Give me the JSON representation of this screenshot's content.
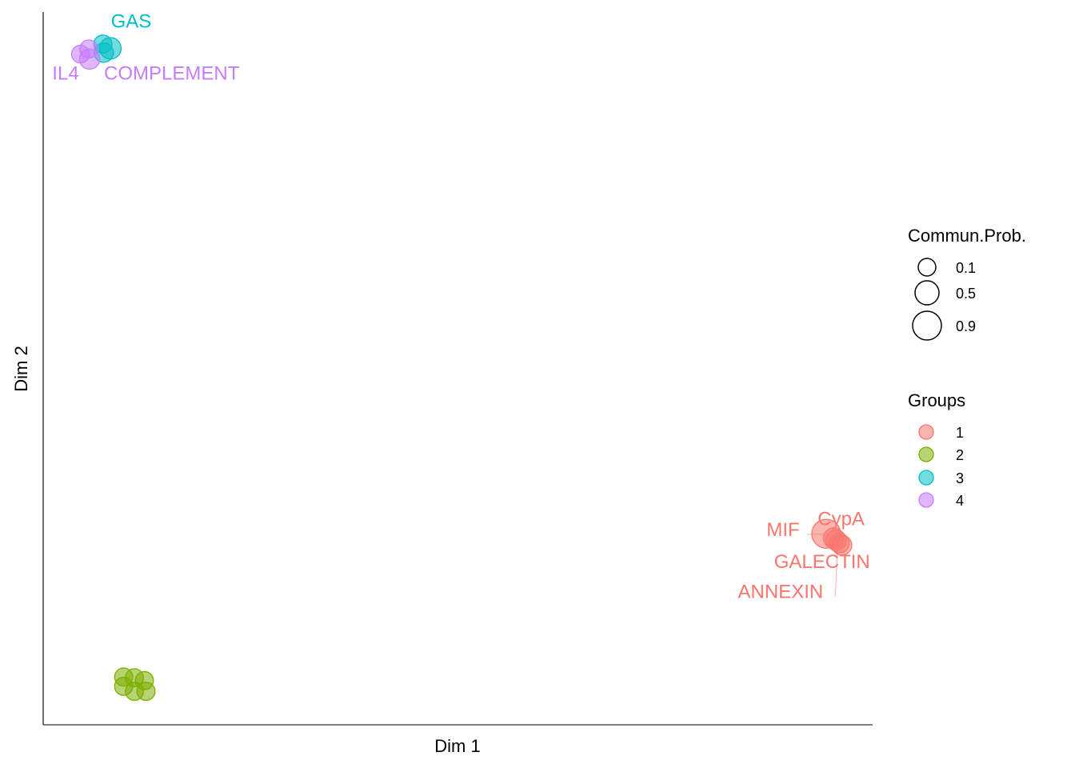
{
  "chart_data": {
    "type": "scatter",
    "xlabel": "Dim 1",
    "ylabel": "Dim 2",
    "xlim": [
      0,
      100
    ],
    "ylim": [
      0,
      100
    ],
    "axis_ticks": false,
    "grid": false,
    "legend_position": "right",
    "legend_size": {
      "title": "Commun.Prob.",
      "entries": [
        {
          "label": "0.1",
          "value": 0.1
        },
        {
          "label": "0.5",
          "value": 0.5
        },
        {
          "label": "0.9",
          "value": 0.9
        }
      ]
    },
    "legend_groups": {
      "title": "Groups",
      "entries": [
        {
          "label": "1",
          "color": "#F8766D"
        },
        {
          "label": "2",
          "color": "#7CAE00"
        },
        {
          "label": "3",
          "color": "#00BFC4"
        },
        {
          "label": "4",
          "color": "#C77CFF"
        }
      ]
    },
    "points": [
      {
        "x": 7.2,
        "y": 95.5,
        "group": 3,
        "prob": 0.2
      },
      {
        "x": 8.1,
        "y": 94.9,
        "group": 3,
        "prob": 0.45
      },
      {
        "x": 7.3,
        "y": 94.3,
        "group": 3,
        "prob": 0.28
      },
      {
        "x": 5.5,
        "y": 94.8,
        "group": 4,
        "prob": 0.2
      },
      {
        "x": 4.5,
        "y": 94.1,
        "group": 4,
        "prob": 0.18
      },
      {
        "x": 5.6,
        "y": 93.4,
        "group": 4,
        "prob": 0.35
      },
      {
        "x": 9.7,
        "y": 6.7,
        "group": 2,
        "prob": 0.2
      },
      {
        "x": 11.0,
        "y": 6.6,
        "group": 2,
        "prob": 0.2
      },
      {
        "x": 12.2,
        "y": 6.2,
        "group": 2,
        "prob": 0.2
      },
      {
        "x": 9.7,
        "y": 5.4,
        "group": 2,
        "prob": 0.2
      },
      {
        "x": 11.0,
        "y": 4.7,
        "group": 2,
        "prob": 0.2
      },
      {
        "x": 12.4,
        "y": 4.7,
        "group": 2,
        "prob": 0.2
      },
      {
        "x": 94.4,
        "y": 26.8,
        "group": 1,
        "prob": 1.3
      },
      {
        "x": 95.3,
        "y": 26.2,
        "group": 1,
        "prob": 0.35
      },
      {
        "x": 95.6,
        "y": 25.9,
        "group": 1,
        "prob": 0.35
      },
      {
        "x": 96.0,
        "y": 25.5,
        "group": 1,
        "prob": 0.3
      },
      {
        "x": 96.3,
        "y": 25.2,
        "group": 1,
        "prob": 0.3
      }
    ],
    "labels": [
      {
        "text": "GAS",
        "group": 3,
        "x": 10.6,
        "y": 97.8,
        "anchor": "middle"
      },
      {
        "text": "IL4",
        "group": 4,
        "x": 2.7,
        "y": 90.5,
        "anchor": "middle"
      },
      {
        "text": "COMPLEMENT",
        "group": 4,
        "x": 15.5,
        "y": 90.5,
        "anchor": "middle"
      },
      {
        "text": "CypA",
        "group": 1,
        "x": 96.2,
        "y": 28.0,
        "anchor": "middle"
      },
      {
        "text": "MIF",
        "group": 1,
        "x": 89.2,
        "y": 26.5,
        "anchor": "middle"
      },
      {
        "text": "GALECTIN",
        "group": 1,
        "x": 93.9,
        "y": 22.0,
        "anchor": "middle"
      },
      {
        "text": "ANNEXIN",
        "group": 1,
        "x": 88.9,
        "y": 17.8,
        "anchor": "middle"
      }
    ],
    "leader_lines": [
      {
        "from": [
          92.1,
          26.7
        ],
        "to": [
          94.4,
          26.8
        ]
      },
      {
        "from": [
          95.5,
          18.0
        ],
        "to": [
          95.8,
          25.6
        ]
      }
    ]
  }
}
